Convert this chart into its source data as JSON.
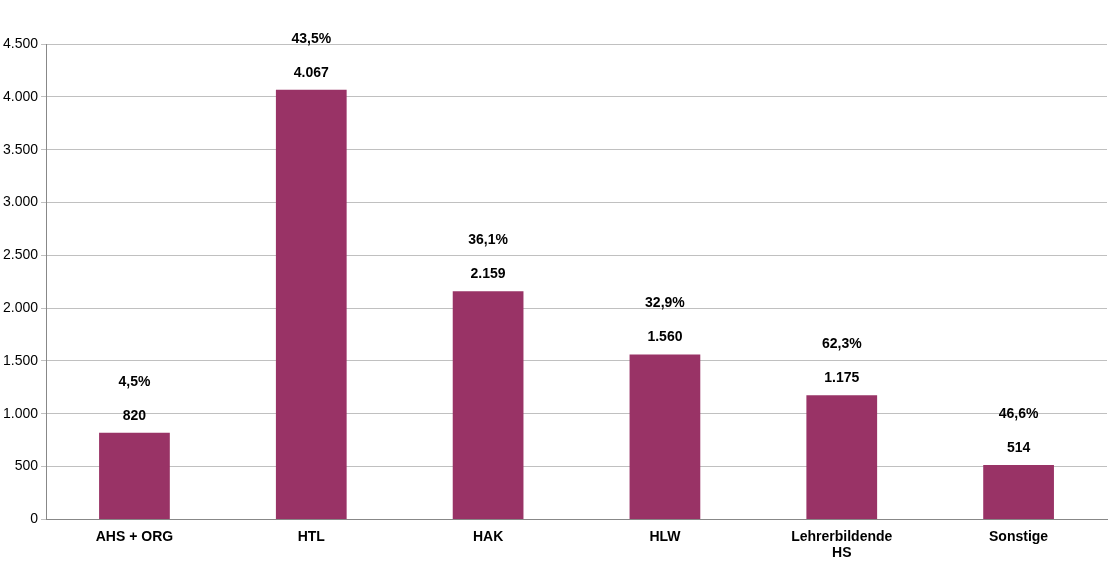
{
  "chart_data": {
    "type": "bar",
    "categories": [
      "AHS + ORG",
      "HTL",
      "HAK",
      "HLW",
      "Lehrerbildende HS",
      "Sonstige"
    ],
    "values": [
      820,
      4067,
      2159,
      1560,
      1175,
      514
    ],
    "value_labels": [
      "820",
      "4.067",
      "2.159",
      "1.560",
      "1.175",
      "514"
    ],
    "color": "#993366",
    "ylim": [
      0,
      4500
    ],
    "yticks": [
      0,
      500,
      {
        "value": 1000,
        "label": "1.000"
      },
      {
        "value": 1500,
        "label": "1.500"
      },
      {
        "value": 2000,
        "label": "2.000"
      },
      {
        "value": 2500,
        "label": "2.500"
      },
      {
        "value": 3000,
        "label": "3.000"
      },
      {
        "value": 3500,
        "label": "3.500"
      },
      {
        "value": 4000,
        "label": "4.000"
      },
      {
        "value": 4500,
        "label": "4.500"
      }
    ],
    "grid": "y",
    "legend": false,
    "annotations": [
      "4,5%",
      "43,5%",
      "36,1%",
      "32,9%",
      "62,3%",
      "46,6%"
    ]
  }
}
